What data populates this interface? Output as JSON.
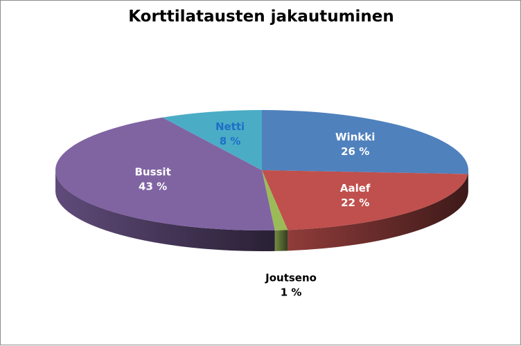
{
  "chart_data": {
    "type": "pie",
    "title": "Korttilatausten jakautuminen",
    "style": "3d",
    "slices": [
      {
        "label": "Winkki",
        "value": 26,
        "percent_label": "26 %",
        "color": "#4F81BD",
        "label_color": "#ffffff"
      },
      {
        "label": "Aalef",
        "value": 22,
        "percent_label": "22 %",
        "color": "#C0504D",
        "label_color": "#ffffff"
      },
      {
        "label": "Joutseno",
        "value": 1,
        "percent_label": "1 %",
        "color": "#9BBB59",
        "label_color": "#000000"
      },
      {
        "label": "Bussit",
        "value": 43,
        "percent_label": "43 %",
        "color": "#8064A2",
        "label_color": "#ffffff"
      },
      {
        "label": "Netti",
        "value": 8,
        "percent_label": "8 %",
        "color": "#4BACC6",
        "label_color": "#1F6FC5"
      }
    ]
  }
}
